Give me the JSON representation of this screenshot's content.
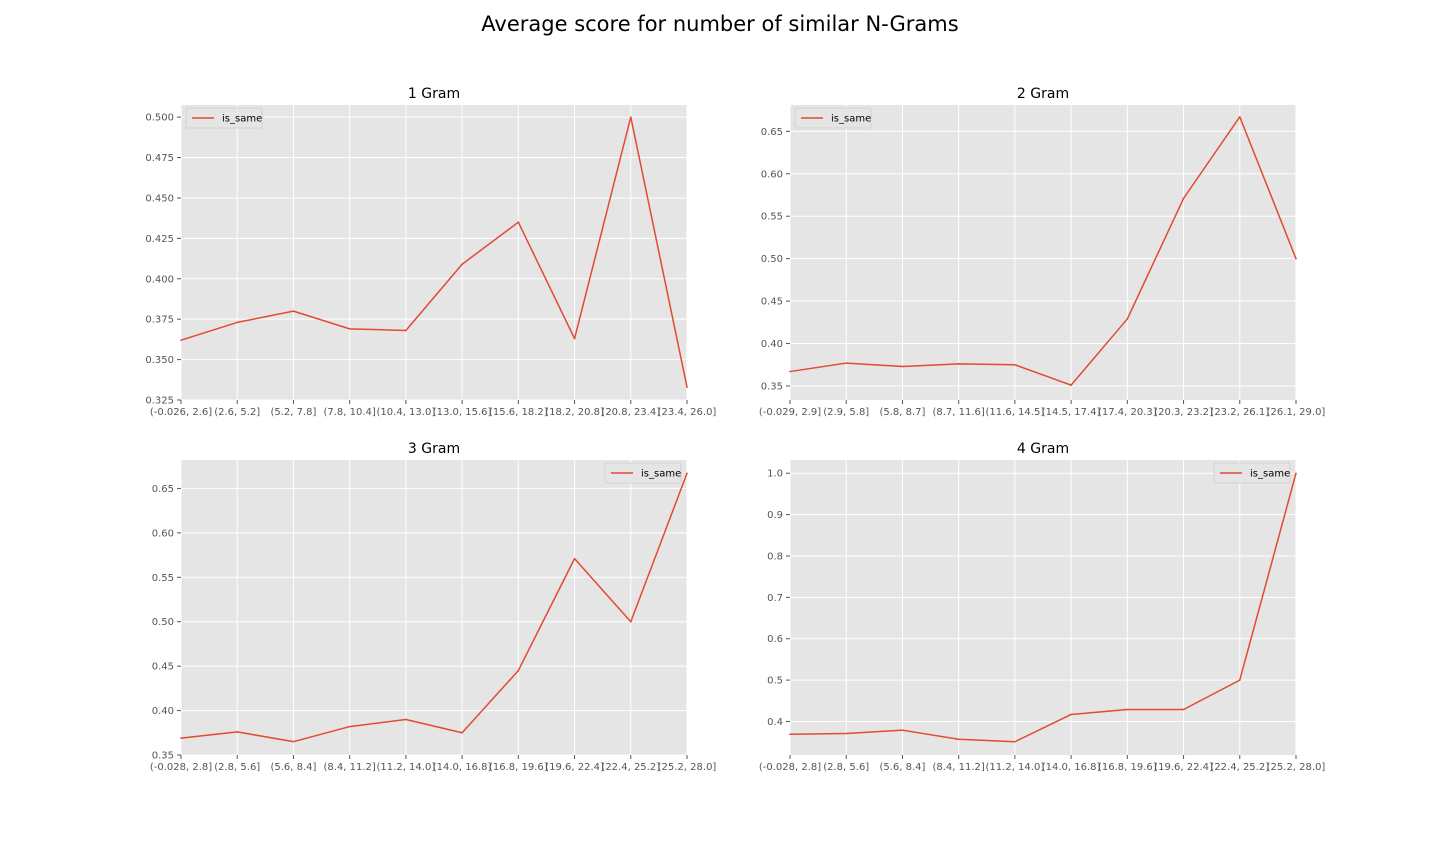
{
  "suptitle": "Average score for number of similar N-Grams",
  "colors": {
    "line": "#E24A33",
    "plot_bg": "#E5E5E5",
    "grid": "#FFFFFF",
    "tick": "#555555"
  },
  "chart_data": [
    {
      "type": "line",
      "title": "1 Gram",
      "categories": [
        "(-0.026, 2.6]",
        "(2.6, 5.2]",
        "(5.2, 7.8]",
        "(7.8, 10.4]",
        "(10.4, 13.0]",
        "(13.0, 15.6]",
        "(15.6, 18.2]",
        "(18.2, 20.8]",
        "(20.8, 23.4]",
        "(23.4, 26.0]"
      ],
      "series": [
        {
          "name": "is_same",
          "values": [
            0.362,
            0.373,
            0.38,
            0.369,
            0.368,
            0.409,
            0.435,
            0.363,
            0.5,
            0.333
          ]
        }
      ],
      "ylim": [
        0.325,
        0.5075
      ],
      "yticks": [
        0.325,
        0.35,
        0.375,
        0.4,
        0.425,
        0.45,
        0.475,
        0.5
      ],
      "ytick_labels": [
        "0.325",
        "0.350",
        "0.375",
        "0.400",
        "0.425",
        "0.450",
        "0.475",
        "0.500"
      ],
      "legend": "upper-left",
      "grid": true
    },
    {
      "type": "line",
      "title": "2 Gram",
      "categories": [
        "(-0.029, 2.9]",
        "(2.9, 5.8]",
        "(5.8, 8.7]",
        "(8.7, 11.6]",
        "(11.6, 14.5]",
        "(14.5, 17.4]",
        "(17.4, 20.3]",
        "(20.3, 23.2]",
        "(23.2, 26.1]",
        "(26.1, 29.0]"
      ],
      "series": [
        {
          "name": "is_same",
          "values": [
            0.367,
            0.377,
            0.373,
            0.376,
            0.375,
            0.351,
            0.429,
            0.571,
            0.667,
            0.5
          ]
        }
      ],
      "ylim": [
        0.3335,
        0.681
      ],
      "yticks": [
        0.35,
        0.4,
        0.45,
        0.5,
        0.55,
        0.6,
        0.65
      ],
      "ytick_labels": [
        "0.35",
        "0.40",
        "0.45",
        "0.50",
        "0.55",
        "0.60",
        "0.65"
      ],
      "legend": "upper-left",
      "grid": true
    },
    {
      "type": "line",
      "title": "3 Gram",
      "categories": [
        "(-0.028, 2.8]",
        "(2.8, 5.6]",
        "(5.6, 8.4]",
        "(8.4, 11.2]",
        "(11.2, 14.0]",
        "(14.0, 16.8]",
        "(16.8, 19.6]",
        "(19.6, 22.4]",
        "(22.4, 25.2]",
        "(25.2, 28.0]"
      ],
      "series": [
        {
          "name": "is_same",
          "values": [
            0.369,
            0.376,
            0.365,
            0.382,
            0.39,
            0.375,
            0.445,
            0.571,
            0.5,
            0.667
          ]
        }
      ],
      "ylim": [
        0.35,
        0.682
      ],
      "yticks": [
        0.35,
        0.4,
        0.45,
        0.5,
        0.55,
        0.6,
        0.65
      ],
      "ytick_labels": [
        "0.35",
        "0.40",
        "0.45",
        "0.50",
        "0.55",
        "0.60",
        "0.65"
      ],
      "legend": "upper-right",
      "grid": true
    },
    {
      "type": "line",
      "title": "4 Gram",
      "categories": [
        "(-0.028, 2.8]",
        "(2.8, 5.6]",
        "(5.6, 8.4]",
        "(8.4, 11.2]",
        "(11.2, 14.0]",
        "(14.0, 16.8]",
        "(16.8, 19.6]",
        "(19.6, 22.4]",
        "(22.4, 25.2]",
        "(25.2, 28.0]"
      ],
      "series": [
        {
          "name": "is_same",
          "values": [
            0.369,
            0.371,
            0.379,
            0.357,
            0.351,
            0.417,
            0.429,
            0.429,
            0.5,
            1.0
          ]
        }
      ],
      "ylim": [
        0.319,
        1.032
      ],
      "yticks": [
        0.4,
        0.5,
        0.6,
        0.7,
        0.8,
        0.9,
        1.0
      ],
      "ytick_labels": [
        "0.4",
        "0.5",
        "0.6",
        "0.7",
        "0.8",
        "0.9",
        "1.0"
      ],
      "legend": "upper-right",
      "grid": true
    }
  ]
}
